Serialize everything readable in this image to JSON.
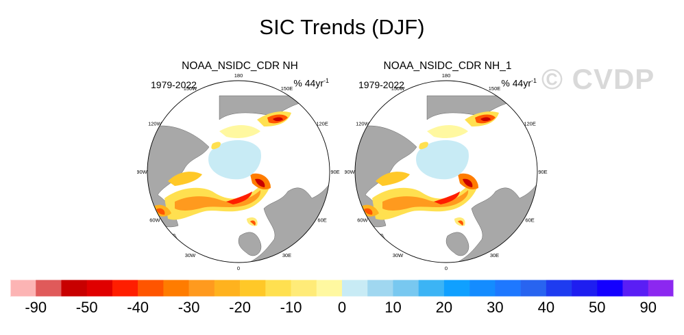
{
  "title": "SIC Trends (DJF)",
  "watermark": "© CVDP",
  "panels": [
    {
      "name": "NOAA_NSIDC_CDR NH",
      "period": "1979-2022",
      "units_main": "% 44yr",
      "units_exp": "-1"
    },
    {
      "name": "NOAA_NSIDC_CDR NH_1",
      "period": "1979-2022",
      "units_main": "% 44yr",
      "units_exp": "-1"
    }
  ],
  "longitude_labels": [
    {
      "text": "180",
      "angle": 0
    },
    {
      "text": "150E",
      "angle": 30
    },
    {
      "text": "120E",
      "angle": 60
    },
    {
      "text": "90E",
      "angle": 90
    },
    {
      "text": "60E",
      "angle": 120
    },
    {
      "text": "30E",
      "angle": 150
    },
    {
      "text": "0",
      "angle": 180
    },
    {
      "text": "30W",
      "angle": 210
    },
    {
      "text": "60W",
      "angle": 240
    },
    {
      "text": "90W",
      "angle": 270
    },
    {
      "text": "120W",
      "angle": 300
    },
    {
      "text": "150W",
      "angle": 330
    }
  ],
  "colorbar": {
    "colors": [
      "#fcb4b4",
      "#e05a5a",
      "#c80000",
      "#e00000",
      "#ff1e00",
      "#ff5500",
      "#ff7c00",
      "#ff9a1e",
      "#ffb21e",
      "#ffc828",
      "#ffe050",
      "#ffeb78",
      "#fff8a0",
      "#c8ebf5",
      "#a0d7f0",
      "#78c8f0",
      "#3cb4f5",
      "#10a0ff",
      "#148cff",
      "#1e78ff",
      "#2864f0",
      "#1e3cf0",
      "#1e1ef0",
      "#1400ff",
      "#5a1ef5",
      "#8c28f0"
    ],
    "labels": [
      {
        "text": "-90",
        "index": 1
      },
      {
        "text": "-50",
        "index": 3
      },
      {
        "text": "-40",
        "index": 5
      },
      {
        "text": "-30",
        "index": 7
      },
      {
        "text": "-20",
        "index": 9
      },
      {
        "text": "-10",
        "index": 11
      },
      {
        "text": "0",
        "index": 13
      },
      {
        "text": "10",
        "index": 15
      },
      {
        "text": "20",
        "index": 17
      },
      {
        "text": "30",
        "index": 19
      },
      {
        "text": "40",
        "index": 21
      },
      {
        "text": "50",
        "index": 23
      },
      {
        "text": "90",
        "index": 25
      }
    ]
  }
}
